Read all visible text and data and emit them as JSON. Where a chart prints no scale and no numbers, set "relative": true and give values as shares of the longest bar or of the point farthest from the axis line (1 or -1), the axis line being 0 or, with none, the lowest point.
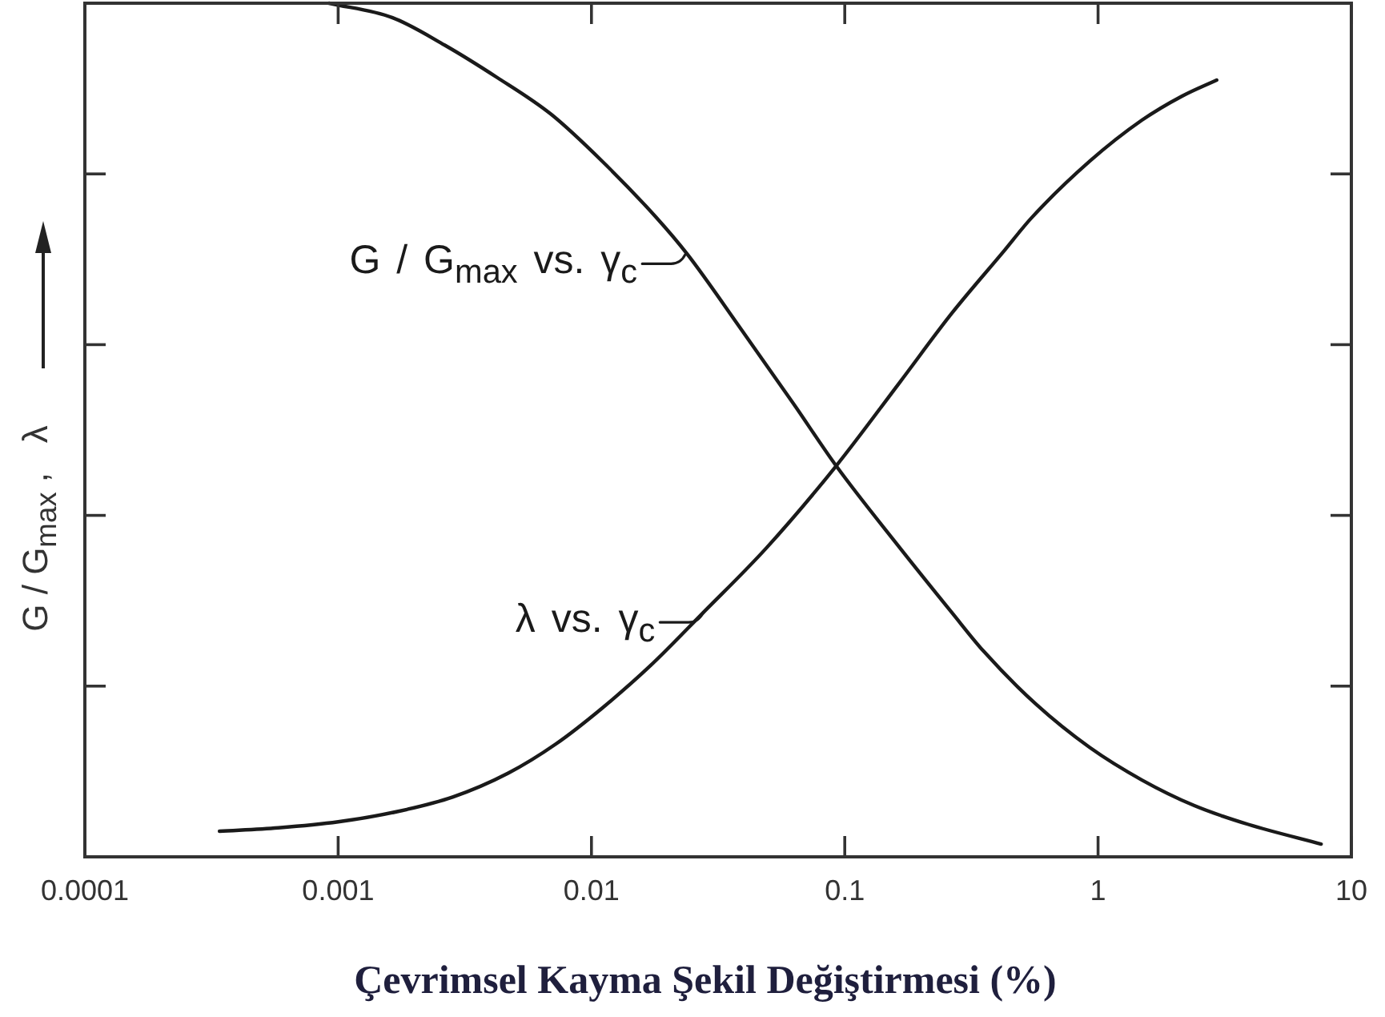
{
  "chart_data": {
    "type": "line",
    "xlabel": "Çevrimsel Kayma Şekil Değiştirmesi (%)",
    "ylabel": "G / G$_{max}$ ,   λ",
    "log": "x",
    "xlim": [
      0.0001,
      10
    ],
    "xticks": [
      0.0001,
      0.001,
      0.01,
      0.1,
      1,
      10
    ],
    "relative": true,
    "series": [
      {
        "color": "#1a1a1a",
        "x": [
          0.00092,
          0.00164,
          0.00263,
          0.00424,
          0.00692,
          0.0111,
          0.0179,
          0.0239,
          0.039,
          0.0627,
          0.0925,
          0.165,
          0.265,
          0.353,
          0.568,
          0.928,
          1.49,
          2.4,
          3.92,
          7.6
        ],
        "values": [
          1.0,
          0.983,
          0.951,
          0.913,
          0.87,
          0.814,
          0.75,
          0.706,
          0.618,
          0.531,
          0.458,
          0.362,
          0.286,
          0.241,
          0.179,
          0.128,
          0.09,
          0.06,
          0.038,
          0.015
        ]
      },
      {
        "color": "#1a1a1a",
        "x": [
          0.00034,
          0.00058,
          0.001,
          0.00171,
          0.00283,
          0.00469,
          0.00722,
          0.0111,
          0.0171,
          0.0276,
          0.0491,
          0.0925,
          0.165,
          0.265,
          0.426,
          0.544,
          0.928,
          1.49,
          2.14,
          2.94
        ],
        "values": [
          0.03,
          0.034,
          0.041,
          0.053,
          0.07,
          0.098,
          0.132,
          0.175,
          0.224,
          0.286,
          0.362,
          0.458,
          0.556,
          0.637,
          0.71,
          0.748,
          0.815,
          0.863,
          0.891,
          0.91
        ]
      }
    ],
    "annotations": [
      {
        "text": "G / G$_{max}$ vs. γ$_{c}$",
        "x": 0.0235,
        "y": 0.706
      },
      {
        "text": "λ vs. γ$_{c}$",
        "x": 0.0276,
        "y": 0.286
      }
    ]
  }
}
